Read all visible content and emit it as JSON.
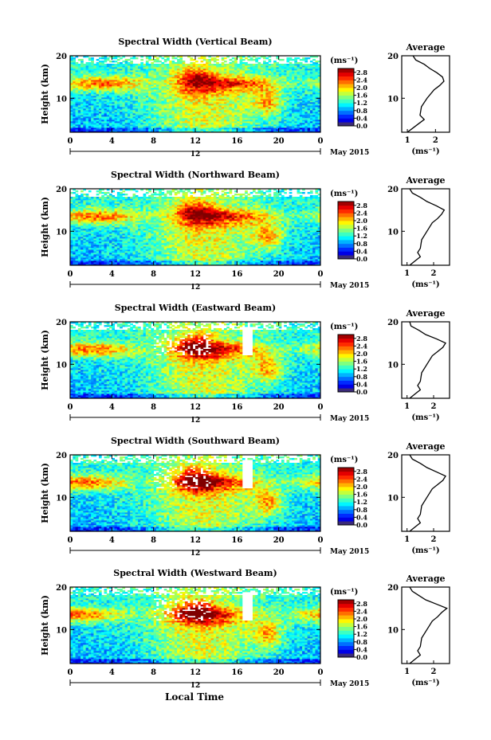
{
  "figure": {
    "xlabel": "Local Time",
    "ylabel": "Height (km)",
    "date_label": "May 2015",
    "day_label": "12",
    "cbar_unit": "(ms⁻¹)",
    "avg_title": "Average",
    "avg_xlabel": "(ms⁻¹)"
  },
  "chart_data": [
    {
      "type": "heatmap",
      "title": "Spectral Width (Vertical Beam)",
      "x_ticks": [
        "0",
        "4",
        "8",
        "12",
        "16",
        "20",
        "0"
      ],
      "xlim": [
        0,
        24
      ],
      "y_ticks": [
        "20",
        "10"
      ],
      "ylim": [
        2,
        20
      ],
      "colorbar": {
        "ticks": [
          "2.8",
          "2.4",
          "2.0",
          "1.6",
          "1.2",
          "0.8",
          "0.4",
          "0.0"
        ],
        "range": [
          0,
          3.0
        ]
      },
      "average_profile": {
        "x_ticks": [
          "1",
          "2"
        ],
        "xlim": [
          0.8,
          2.5
        ],
        "height": [
          2,
          3,
          4,
          5,
          6,
          8,
          10,
          12,
          13,
          14,
          15,
          16,
          17,
          18,
          19,
          20
        ],
        "value": [
          1.0,
          1.2,
          1.4,
          1.6,
          1.45,
          1.5,
          1.7,
          1.95,
          2.15,
          2.3,
          2.25,
          2.05,
          1.8,
          1.6,
          1.3,
          1.2
        ]
      }
    },
    {
      "type": "heatmap",
      "title": "Spectral Width (Northward Beam)",
      "x_ticks": [
        "0",
        "4",
        "8",
        "12",
        "16",
        "20",
        "0"
      ],
      "xlim": [
        0,
        24
      ],
      "y_ticks": [
        "20",
        "10"
      ],
      "ylim": [
        2,
        20
      ],
      "colorbar": {
        "ticks": [
          "2.8",
          "2.4",
          "2.0",
          "1.6",
          "1.2",
          "0.8",
          "0.4",
          "0.0"
        ],
        "range": [
          0,
          3.0
        ]
      },
      "average_profile": {
        "x_ticks": [
          "1",
          "2"
        ],
        "xlim": [
          0.8,
          2.6
        ],
        "height": [
          2,
          3,
          4,
          5,
          6,
          8,
          10,
          12,
          13,
          14,
          15,
          16,
          17,
          18,
          19,
          20
        ],
        "value": [
          1.1,
          1.3,
          1.5,
          1.4,
          1.5,
          1.55,
          1.75,
          1.95,
          2.15,
          2.3,
          2.4,
          2.1,
          1.75,
          1.5,
          1.2,
          1.1
        ]
      }
    },
    {
      "type": "heatmap",
      "title": "Spectral Width (Eastward Beam)",
      "x_ticks": [
        "0",
        "4",
        "8",
        "12",
        "16",
        "20",
        "0"
      ],
      "xlim": [
        0,
        24
      ],
      "y_ticks": [
        "20",
        "10"
      ],
      "ylim": [
        2,
        20
      ],
      "colorbar": {
        "ticks": [
          "2.8",
          "2.4",
          "2.0",
          "1.6",
          "1.2",
          "0.8",
          "0.4",
          "0.0"
        ],
        "range": [
          0,
          3.0
        ]
      },
      "average_profile": {
        "x_ticks": [
          "1",
          "2"
        ],
        "xlim": [
          0.8,
          2.6
        ],
        "height": [
          2,
          3,
          4,
          5,
          6,
          8,
          10,
          12,
          13,
          14,
          15,
          16,
          17,
          18,
          19,
          20
        ],
        "value": [
          1.1,
          1.3,
          1.5,
          1.4,
          1.5,
          1.55,
          1.75,
          1.95,
          2.15,
          2.35,
          2.45,
          2.1,
          1.7,
          1.45,
          1.15,
          1.1
        ]
      }
    },
    {
      "type": "heatmap",
      "title": "Spectral Width (Southward Beam)",
      "x_ticks": [
        "0",
        "4",
        "8",
        "12",
        "16",
        "20",
        "0"
      ],
      "xlim": [
        0,
        24
      ],
      "y_ticks": [
        "20",
        "10"
      ],
      "ylim": [
        2,
        20
      ],
      "colorbar": {
        "ticks": [
          "2.8",
          "2.4",
          "2.0",
          "1.6",
          "1.2",
          "0.8",
          "0.4",
          "0.0"
        ],
        "range": [
          0,
          3.0
        ]
      },
      "average_profile": {
        "x_ticks": [
          "1",
          "2"
        ],
        "xlim": [
          0.8,
          2.6
        ],
        "height": [
          2,
          3,
          4,
          5,
          6,
          8,
          10,
          12,
          13,
          14,
          15,
          16,
          17,
          18,
          19,
          20
        ],
        "value": [
          1.1,
          1.3,
          1.5,
          1.4,
          1.5,
          1.55,
          1.75,
          1.95,
          2.15,
          2.35,
          2.45,
          2.1,
          1.75,
          1.5,
          1.2,
          1.1
        ]
      }
    },
    {
      "type": "heatmap",
      "title": "Spectral Width (Westward Beam)",
      "x_ticks": [
        "0",
        "4",
        "8",
        "12",
        "16",
        "20",
        "0"
      ],
      "xlim": [
        0,
        24
      ],
      "y_ticks": [
        "20",
        "10"
      ],
      "ylim": [
        2,
        20
      ],
      "colorbar": {
        "ticks": [
          "2.8",
          "2.4",
          "2.0",
          "1.6",
          "1.2",
          "0.8",
          "0.4",
          "0.0"
        ],
        "range": [
          0,
          3.0
        ]
      },
      "average_profile": {
        "x_ticks": [
          "1",
          "2"
        ],
        "xlim": [
          0.8,
          2.6
        ],
        "height": [
          2,
          3,
          4,
          5,
          6,
          8,
          10,
          12,
          13,
          14,
          15,
          16,
          17,
          18,
          19,
          20
        ],
        "value": [
          1.1,
          1.3,
          1.5,
          1.4,
          1.5,
          1.55,
          1.75,
          1.95,
          2.15,
          2.3,
          2.5,
          2.1,
          1.7,
          1.45,
          1.2,
          1.1
        ]
      }
    }
  ]
}
